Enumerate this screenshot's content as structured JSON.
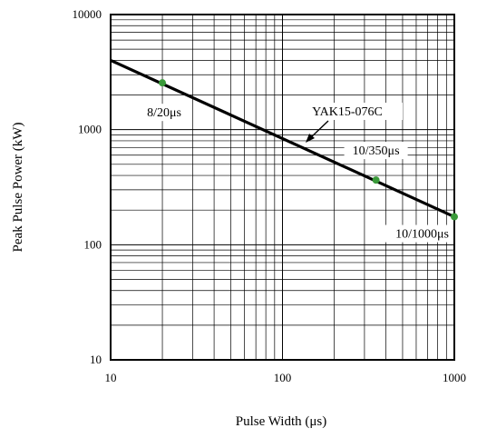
{
  "chart_data": {
    "type": "line",
    "title": "",
    "xlabel": "Pulse Width (μs)",
    "ylabel": "Peak Pulse Power (kW)",
    "x_scale": "log",
    "y_scale": "log",
    "xlim": [
      10,
      1000
    ],
    "ylim": [
      10,
      10000
    ],
    "x_ticks": [
      "10",
      "100",
      "1000"
    ],
    "y_ticks": [
      "10",
      "100",
      "1000",
      "10000"
    ],
    "grid": true,
    "series": [
      {
        "name": "YAK15-076C",
        "color": "#000000",
        "points": [
          {
            "x": 10,
            "y": 4000
          },
          {
            "x": 1000,
            "y": 175
          }
        ]
      }
    ],
    "markers": [
      {
        "label": "8/20μs",
        "x": 20,
        "y": 2550,
        "color": "#3a9a3a"
      },
      {
        "label": "10/350μs",
        "x": 350,
        "y": 365,
        "color": "#3a9a3a"
      },
      {
        "label": "10/1000μs",
        "x": 1000,
        "y": 175,
        "color": "#3a9a3a"
      }
    ]
  }
}
